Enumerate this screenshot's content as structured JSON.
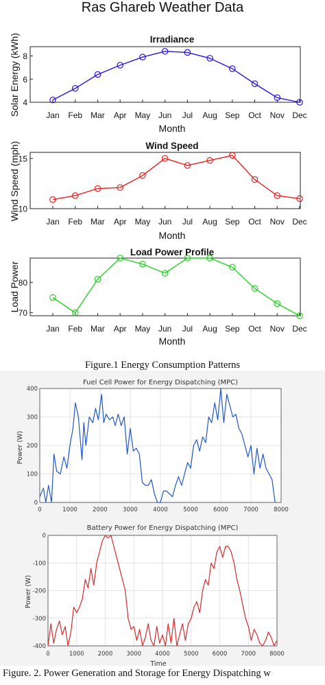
{
  "figure1": {
    "title": "Ras Ghareb Weather Data",
    "caption": "Figure.1 Energy Consumption Patterns"
  },
  "figure2": {
    "caption": "Figure. 2. Power Generation and Storage for Energy Dispatching w"
  },
  "colors": {
    "irradiance": "#2a12e0",
    "wind": "#ee1c1c",
    "load": "#22d222",
    "fuel": "#1f56c8",
    "battery": "#d62828"
  },
  "chart_data": [
    {
      "type": "line",
      "title": "Irradiance",
      "xlabel": "Month",
      "ylabel": "Solar Energy (kWh)",
      "categories": [
        "Jan",
        "Feb",
        "Mar",
        "Apr",
        "May",
        "Jun",
        "Jul",
        "Aug",
        "Sep",
        "Oct",
        "Nov",
        "Dec"
      ],
      "series": [
        {
          "values": [
            4.2,
            5.2,
            6.4,
            7.2,
            7.9,
            8.4,
            8.3,
            7.8,
            6.9,
            5.6,
            4.4,
            4.0
          ]
        }
      ],
      "ylim": [
        4,
        8.8
      ],
      "yticks": [
        4,
        6,
        8
      ],
      "markers": "circle",
      "grid": false
    },
    {
      "type": "line",
      "title": "Wind Speed",
      "xlabel": "Month",
      "ylabel": "Wind Speed (mph)",
      "categories": [
        "Jan",
        "Feb",
        "Mar",
        "Apr",
        "May",
        "Jun",
        "Jul",
        "Aug",
        "Sep",
        "Oct",
        "Nov",
        "Dec"
      ],
      "series": [
        {
          "values": [
            10.9,
            11.3,
            12.0,
            12.1,
            13.3,
            15.0,
            14.3,
            14.8,
            15.3,
            12.9,
            11.3,
            11.0
          ]
        }
      ],
      "ylim": [
        10,
        15.6
      ],
      "yticks": [
        10,
        15
      ],
      "markers": "circle",
      "grid": false
    },
    {
      "type": "line",
      "title": "Load Power Profile",
      "xlabel": "Month",
      "ylabel": "Load Power",
      "categories": [
        "Jan",
        "Feb",
        "Mar",
        "Apr",
        "May",
        "Jun",
        "Jul",
        "Aug",
        "Sep",
        "Oct",
        "Nov",
        "Dec"
      ],
      "series": [
        {
          "values": [
            75,
            70,
            81,
            88,
            86,
            83,
            88,
            88,
            85,
            78,
            73,
            69
          ]
        }
      ],
      "ylim": [
        69,
        88
      ],
      "yticks": [
        70,
        80
      ],
      "markers": "circle",
      "grid": false
    },
    {
      "type": "line",
      "title": "Fuel Cell Power for Energy Dispatching (MPC)",
      "xlabel": "",
      "ylabel": "Power (W)",
      "xlim": [
        0,
        8000
      ],
      "ylim": [
        0,
        400
      ],
      "xticks": [
        0,
        1000,
        2000,
        3000,
        4000,
        5000,
        6000,
        7000,
        8000
      ],
      "yticks": [
        0,
        100,
        200,
        300,
        400
      ],
      "grid": true,
      "series": [
        {
          "x": [
            0,
            120,
            200,
            290,
            390,
            470,
            560,
            680,
            800,
            900,
            1000,
            1100,
            1180,
            1280,
            1400,
            1460,
            1530,
            1640,
            1760,
            1850,
            1940,
            2050,
            2120,
            2200,
            2310,
            2420,
            2500,
            2600,
            2700,
            2800,
            2900,
            3000,
            3100,
            3200,
            3300,
            3400,
            3500,
            3600,
            3700,
            3800,
            3900,
            4000,
            4100,
            4200,
            4300,
            4400,
            4500,
            4600,
            4700,
            4800,
            4900,
            5000,
            5100,
            5200,
            5300,
            5400,
            5500,
            5600,
            5700,
            5800,
            5900,
            6000,
            6100,
            6200,
            6300,
            6400,
            6500,
            6600,
            6700,
            6800,
            6900,
            7000,
            7100,
            7200,
            7300,
            7400,
            7500,
            7600,
            7700,
            7800
          ],
          "y": [
            20,
            50,
            0,
            60,
            0,
            170,
            110,
            100,
            160,
            120,
            200,
            260,
            350,
            300,
            150,
            280,
            200,
            300,
            280,
            330,
            290,
            380,
            280,
            310,
            290,
            300,
            270,
            310,
            270,
            300,
            170,
            260,
            180,
            190,
            170,
            70,
            60,
            60,
            80,
            30,
            0,
            0,
            40,
            40,
            30,
            20,
            60,
            90,
            60,
            100,
            140,
            120,
            200,
            220,
            180,
            230,
            210,
            300,
            280,
            350,
            290,
            400,
            280,
            380,
            340,
            300,
            310,
            260,
            240,
            200,
            160,
            200,
            100,
            190,
            120,
            170,
            120,
            100,
            80,
            0
          ]
        }
      ]
    },
    {
      "type": "line",
      "title": "Battery Power for Energy Dispatching (MPC)",
      "xlabel": "Time",
      "ylabel": "Power (W)",
      "xlim": [
        0,
        8000
      ],
      "ylim": [
        -400,
        0
      ],
      "xticks": [
        0,
        1000,
        2000,
        3000,
        4000,
        5000,
        6000,
        7000,
        8000
      ],
      "yticks": [
        0,
        -100,
        -200,
        -300,
        -400
      ],
      "grid": true,
      "series": [
        {
          "x": [
            0,
            100,
            200,
            300,
            400,
            500,
            600,
            700,
            800,
            900,
            1000,
            1100,
            1200,
            1300,
            1400,
            1500,
            1600,
            1700,
            1800,
            1900,
            2000,
            2100,
            2200,
            2300,
            2400,
            2500,
            2600,
            2700,
            2800,
            2900,
            3000,
            3100,
            3200,
            3300,
            3400,
            3500,
            3600,
            3700,
            3800,
            3900,
            4000,
            4100,
            4200,
            4300,
            4400,
            4500,
            4600,
            4700,
            4800,
            4900,
            5000,
            5100,
            5200,
            5300,
            5400,
            5500,
            5600,
            5700,
            5800,
            5900,
            6000,
            6100,
            6200,
            6300,
            6400,
            6500,
            6600,
            6700,
            6800,
            6900,
            7000,
            7100,
            7200,
            7300,
            7400,
            7500,
            7600,
            7700,
            7800,
            7900,
            8000
          ],
          "y": [
            -400,
            -320,
            -390,
            -340,
            -310,
            -360,
            -330,
            -400,
            -350,
            -260,
            -280,
            -260,
            -230,
            -160,
            -190,
            -120,
            -180,
            -100,
            -60,
            -20,
            0,
            -10,
            0,
            -40,
            -80,
            -120,
            -160,
            -200,
            -300,
            -340,
            -330,
            -380,
            -340,
            -400,
            -370,
            -320,
            -380,
            -400,
            -330,
            -390,
            -360,
            -400,
            -320,
            -390,
            -300,
            -400,
            -360,
            -320,
            -380,
            -320,
            -300,
            -260,
            -240,
            -280,
            -200,
            -160,
            -180,
            -100,
            -120,
            -60,
            -40,
            -80,
            -40,
            -40,
            -60,
            -100,
            -160,
            -200,
            -250,
            -300,
            -330,
            -380,
            -340,
            -360,
            -390,
            -400,
            -380,
            -350,
            -370,
            -400,
            -380
          ]
        }
      ]
    }
  ]
}
